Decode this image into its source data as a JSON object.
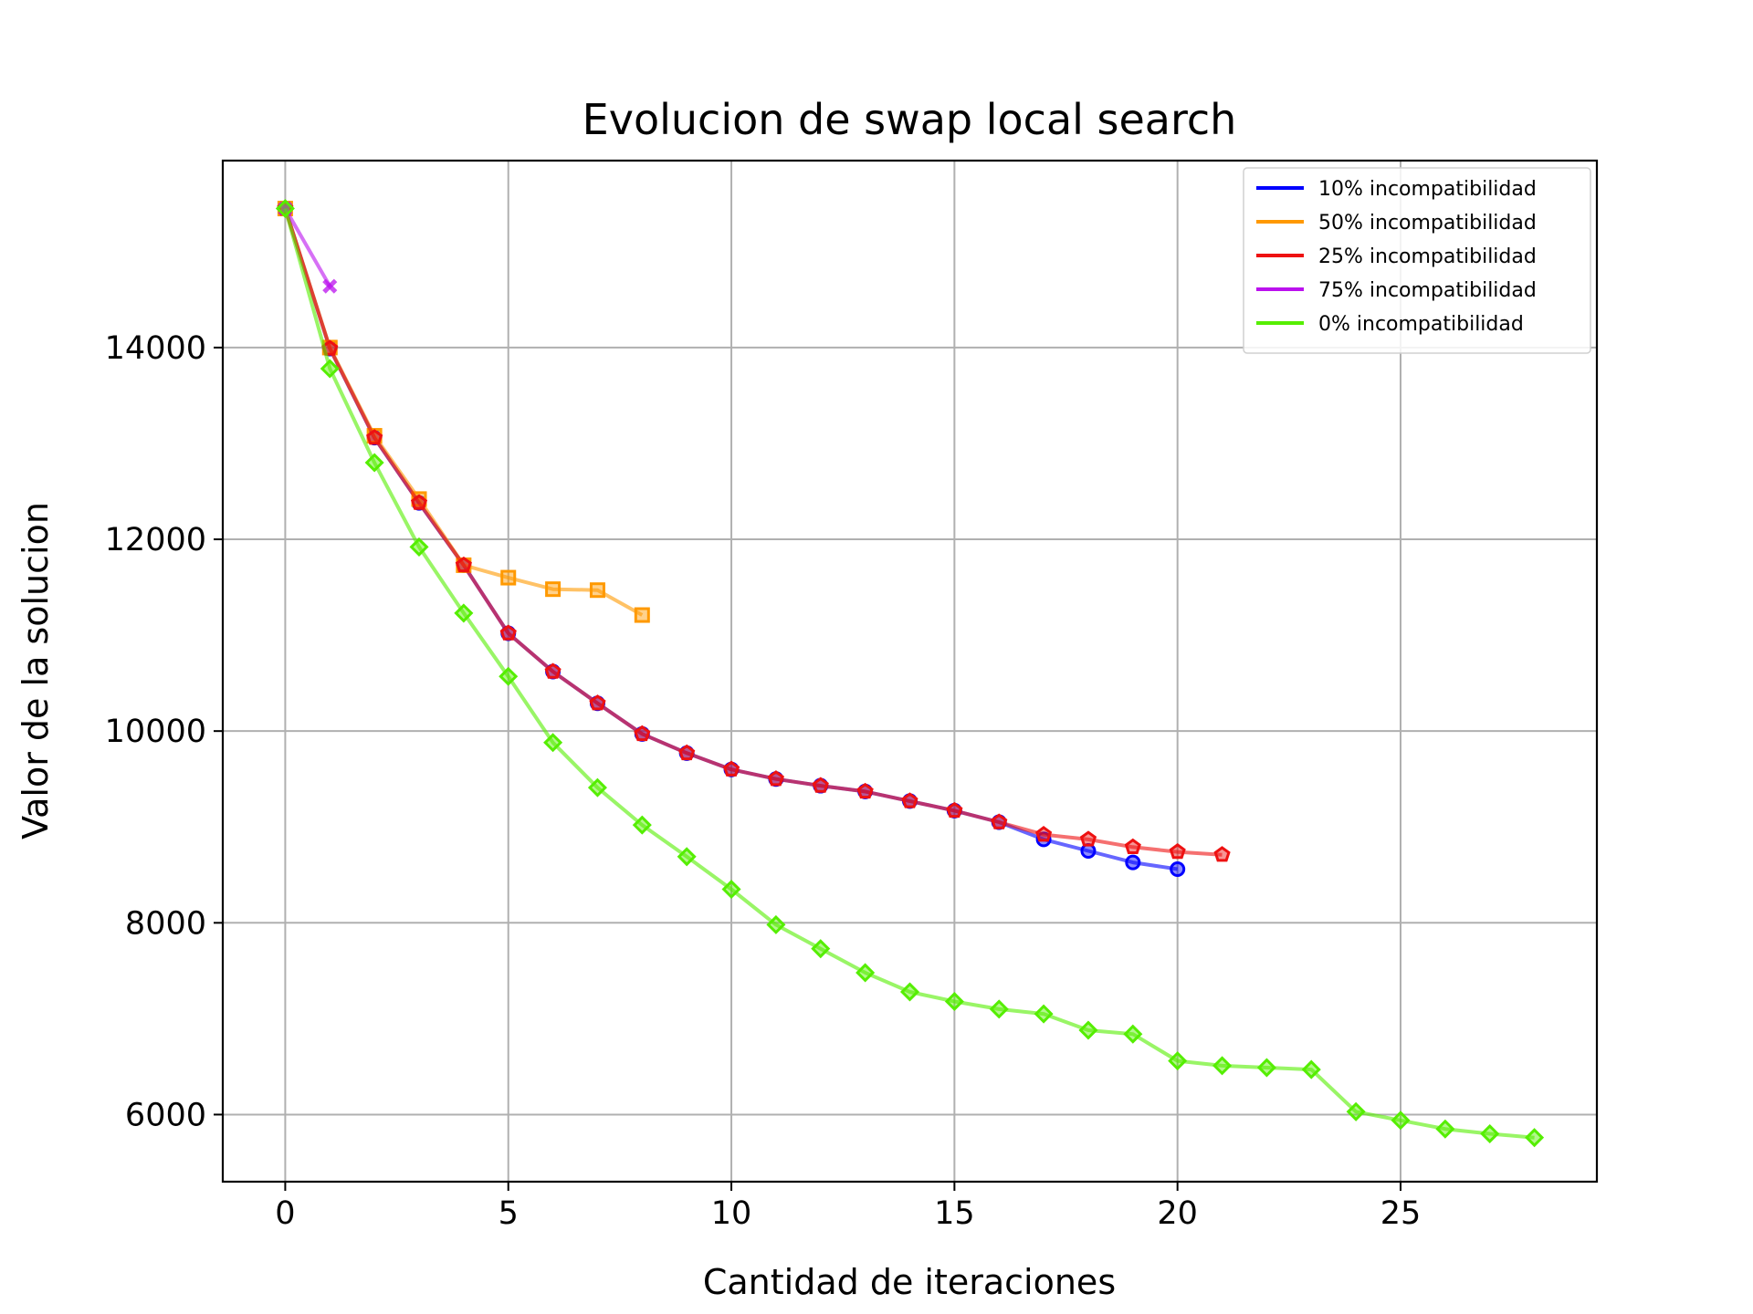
{
  "chart_data": {
    "type": "line",
    "title": "Evolucion de swap local search",
    "xlabel": "Cantidad de iteraciones",
    "ylabel": "Valor de la solucion",
    "xlim": [
      -1.4,
      29.4
    ],
    "ylim": [
      5300,
      15950
    ],
    "xticks": [
      0,
      5,
      10,
      15,
      20,
      25
    ],
    "yticks": [
      6000,
      8000,
      10000,
      12000,
      14000
    ],
    "grid": true,
    "legend_position": "top-right",
    "series": [
      {
        "name": "10% incompatibilidad",
        "color": "#0000ff",
        "marker": "circle",
        "x": [
          0,
          1,
          2,
          3,
          4,
          5,
          6,
          7,
          8,
          9,
          10,
          11,
          12,
          13,
          14,
          15,
          16,
          17,
          18,
          19,
          20
        ],
        "y": [
          15450,
          13990,
          13060,
          12380,
          11730,
          11020,
          10620,
          10290,
          9970,
          9770,
          9600,
          9500,
          9430,
          9370,
          9270,
          9170,
          9050,
          8870,
          8750,
          8630,
          8560
        ]
      },
      {
        "name": "50% incompatibilidad",
        "color": "#ff9900",
        "marker": "square",
        "x": [
          0,
          1,
          2,
          3,
          4,
          5,
          6,
          7,
          8
        ],
        "y": [
          15450,
          14000,
          13080,
          12420,
          11730,
          11600,
          11480,
          11470,
          11210
        ]
      },
      {
        "name": "25% incompatibilidad",
        "color": "#ee1111",
        "marker": "pentagon",
        "x": [
          0,
          1,
          2,
          3,
          4,
          5,
          6,
          7,
          8,
          9,
          10,
          11,
          12,
          13,
          14,
          15,
          16,
          17,
          18,
          19,
          20,
          21
        ],
        "y": [
          15450,
          13990,
          13060,
          12380,
          11730,
          11020,
          10620,
          10290,
          9970,
          9770,
          9600,
          9500,
          9430,
          9370,
          9270,
          9170,
          9050,
          8920,
          8870,
          8790,
          8740,
          8710
        ]
      },
      {
        "name": "75% incompatibilidad",
        "color": "#bb11ee",
        "marker": "x",
        "x": [
          0,
          1
        ],
        "y": [
          15450,
          14640
        ]
      },
      {
        "name": "0% incompatibilidad",
        "color": "#55ee00",
        "marker": "diamond",
        "x": [
          0,
          1,
          2,
          3,
          4,
          5,
          6,
          7,
          8,
          9,
          10,
          11,
          12,
          13,
          14,
          15,
          16,
          17,
          18,
          19,
          20,
          21,
          22,
          23,
          24,
          25,
          26,
          27,
          28
        ],
        "y": [
          15450,
          13780,
          12800,
          11920,
          11230,
          10570,
          9880,
          9410,
          9020,
          8690,
          8350,
          7980,
          7730,
          7480,
          7280,
          7180,
          7100,
          7050,
          6880,
          6840,
          6560,
          6510,
          6490,
          6470,
          6030,
          5940,
          5850,
          5800,
          5760
        ]
      }
    ]
  }
}
